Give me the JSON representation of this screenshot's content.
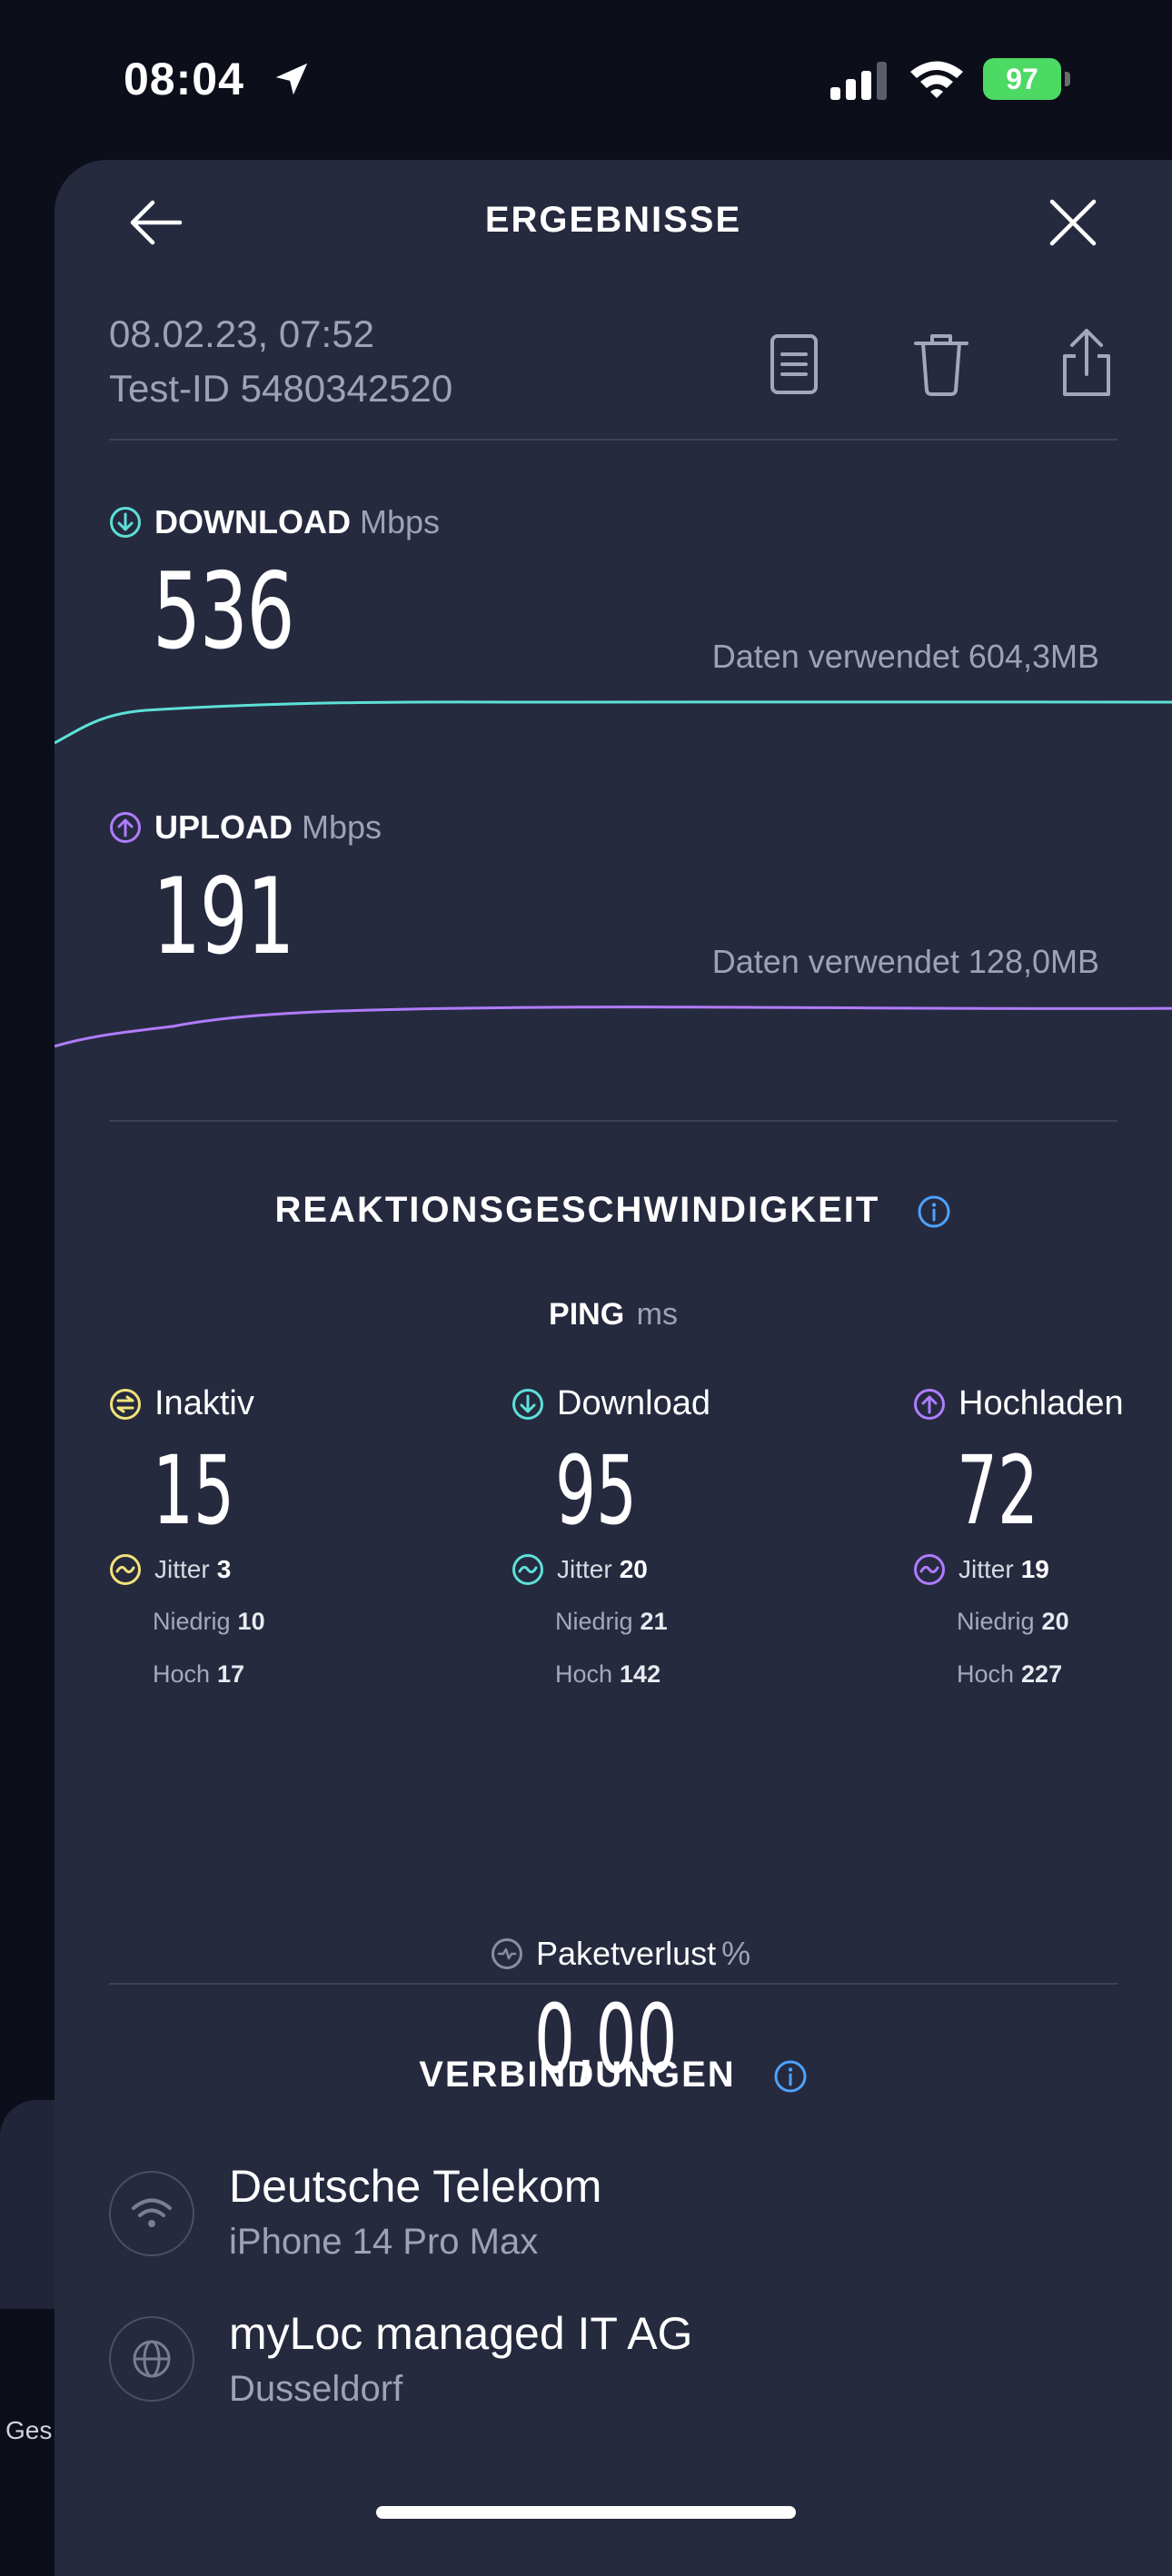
{
  "status_bar": {
    "time": "08:04",
    "battery": "97"
  },
  "background": {
    "left_edge_text": "Ges"
  },
  "header": {
    "title": "ERGEBNISSE"
  },
  "meta": {
    "date": "08.02.23, 07:52",
    "test_id": "Test-ID 5480342520"
  },
  "download": {
    "label": "DOWNLOAD",
    "unit": "Mbps",
    "value": "536",
    "data_used": "Daten verwendet 604,3MB",
    "color": "#5de0d8"
  },
  "upload": {
    "label": "UPLOAD",
    "unit": "Mbps",
    "value": "191",
    "data_used": "Daten verwendet 128,0MB",
    "color": "#b07cff"
  },
  "responsiveness": {
    "title": "REAKTIONSGESCHWINDIGKEIT",
    "ping_label": "PING",
    "ping_unit": "ms",
    "columns": [
      {
        "label": "Inaktiv",
        "value": "15",
        "jitter_label": "Jitter",
        "jitter": "3",
        "low_label": "Niedrig",
        "low": "10",
        "high_label": "Hoch",
        "high": "17",
        "color": "#f2e27a"
      },
      {
        "label": "Download",
        "value": "95",
        "jitter_label": "Jitter",
        "jitter": "20",
        "low_label": "Niedrig",
        "low": "21",
        "high_label": "Hoch",
        "high": "142",
        "color": "#5de0d8"
      },
      {
        "label": "Hochladen",
        "value": "72",
        "jitter_label": "Jitter",
        "jitter": "19",
        "low_label": "Niedrig",
        "low": "20",
        "high_label": "Hoch",
        "high": "227",
        "color": "#b07cff"
      }
    ],
    "packet_loss_label": "Paketverlust",
    "packet_loss_unit": "%",
    "packet_loss": "0,00"
  },
  "connections": {
    "title": "VERBINDUNGEN",
    "items": [
      {
        "name": "Deutsche Telekom",
        "sub": "iPhone 14 Pro Max",
        "icon": "wifi-icon"
      },
      {
        "name": "myLoc managed IT AG",
        "sub": "Dusseldorf",
        "icon": "globe-icon"
      }
    ]
  }
}
